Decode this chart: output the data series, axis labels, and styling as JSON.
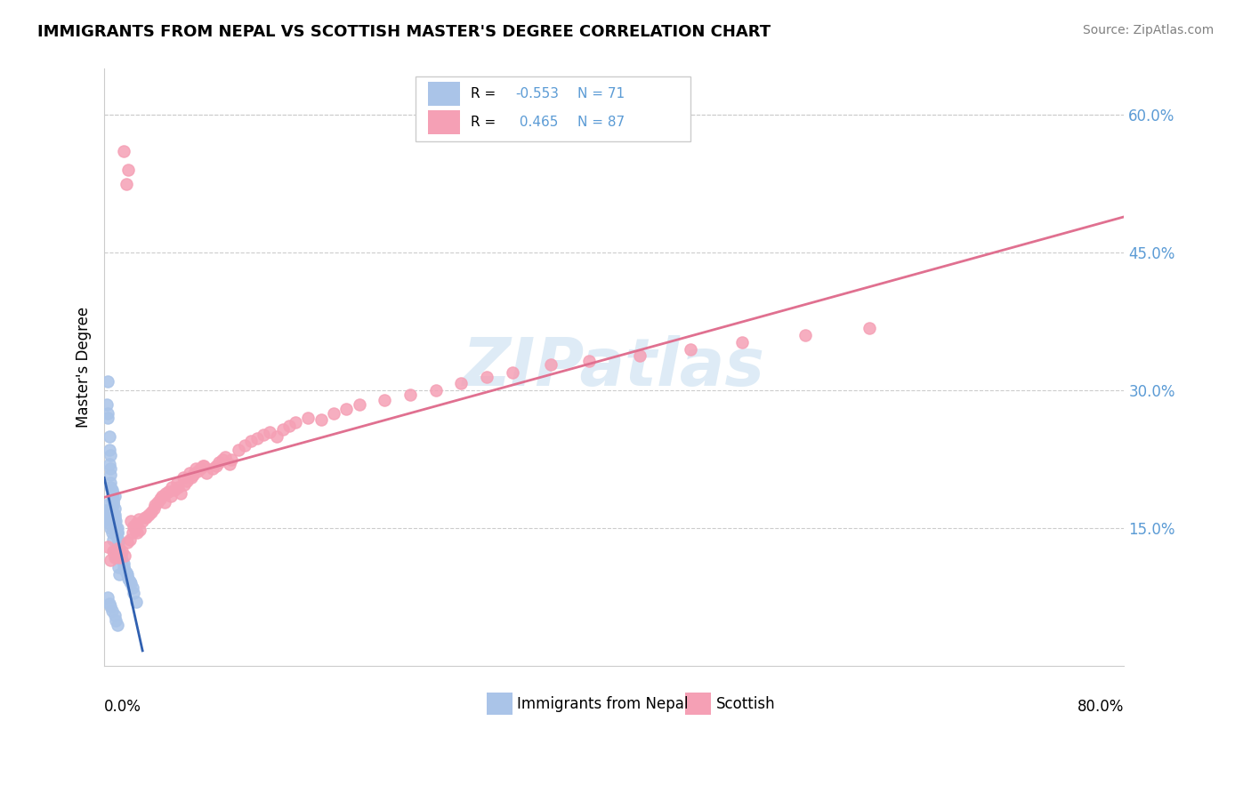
{
  "title": "IMMIGRANTS FROM NEPAL VS SCOTTISH MASTER'S DEGREE CORRELATION CHART",
  "source": "Source: ZipAtlas.com",
  "ylabel": "Master's Degree",
  "right_yticks": [
    "60.0%",
    "45.0%",
    "30.0%",
    "15.0%"
  ],
  "right_ytick_vals": [
    0.6,
    0.45,
    0.3,
    0.15
  ],
  "legend_label1": "Immigrants from Nepal",
  "legend_label2": "Scottish",
  "R1": -0.553,
  "N1": 71,
  "R2": 0.465,
  "N2": 87,
  "color_blue": "#aac4e8",
  "color_pink": "#f5a0b5",
  "color_blue_line": "#3060b0",
  "color_pink_line": "#e07090",
  "watermark": "ZIPatlas",
  "xlim": [
    0.0,
    0.8
  ],
  "ylim": [
    0.0,
    0.65
  ],
  "blue_scatter_x": [
    0.002,
    0.003,
    0.003,
    0.004,
    0.004,
    0.005,
    0.005,
    0.005,
    0.006,
    0.006,
    0.006,
    0.007,
    0.007,
    0.007,
    0.008,
    0.008,
    0.009,
    0.009,
    0.01,
    0.01,
    0.011,
    0.011,
    0.012,
    0.012,
    0.013,
    0.014,
    0.015,
    0.015,
    0.016,
    0.017,
    0.018,
    0.019,
    0.02,
    0.021,
    0.022,
    0.023,
    0.025,
    0.001,
    0.001,
    0.002,
    0.002,
    0.003,
    0.004,
    0.005,
    0.006,
    0.007,
    0.008,
    0.009,
    0.011,
    0.012,
    0.003,
    0.005,
    0.008,
    0.01,
    0.004,
    0.005,
    0.006,
    0.006,
    0.007,
    0.007,
    0.008,
    0.008,
    0.009,
    0.01,
    0.003,
    0.004,
    0.005,
    0.006,
    0.008,
    0.009,
    0.01
  ],
  "blue_scatter_y": [
    0.285,
    0.275,
    0.27,
    0.25,
    0.235,
    0.215,
    0.208,
    0.2,
    0.192,
    0.188,
    0.18,
    0.178,
    0.175,
    0.165,
    0.162,
    0.155,
    0.152,
    0.148,
    0.145,
    0.14,
    0.135,
    0.13,
    0.128,
    0.122,
    0.12,
    0.115,
    0.112,
    0.108,
    0.105,
    0.102,
    0.1,
    0.095,
    0.092,
    0.09,
    0.085,
    0.08,
    0.07,
    0.175,
    0.17,
    0.168,
    0.162,
    0.16,
    0.155,
    0.15,
    0.145,
    0.138,
    0.125,
    0.118,
    0.108,
    0.1,
    0.31,
    0.23,
    0.185,
    0.15,
    0.22,
    0.195,
    0.19,
    0.185,
    0.182,
    0.178,
    0.172,
    0.165,
    0.158,
    0.145,
    0.075,
    0.068,
    0.065,
    0.06,
    0.055,
    0.05,
    0.045
  ],
  "pink_scatter_x": [
    0.003,
    0.005,
    0.007,
    0.008,
    0.01,
    0.012,
    0.014,
    0.016,
    0.018,
    0.02,
    0.022,
    0.024,
    0.026,
    0.028,
    0.03,
    0.033,
    0.035,
    0.037,
    0.04,
    0.042,
    0.045,
    0.047,
    0.05,
    0.052,
    0.055,
    0.058,
    0.06,
    0.063,
    0.065,
    0.068,
    0.07,
    0.073,
    0.075,
    0.078,
    0.08,
    0.085,
    0.088,
    0.09,
    0.093,
    0.095,
    0.098,
    0.1,
    0.105,
    0.11,
    0.115,
    0.12,
    0.125,
    0.13,
    0.135,
    0.14,
    0.145,
    0.15,
    0.16,
    0.17,
    0.18,
    0.19,
    0.2,
    0.22,
    0.24,
    0.26,
    0.28,
    0.3,
    0.32,
    0.35,
    0.38,
    0.42,
    0.46,
    0.5,
    0.55,
    0.6,
    0.015,
    0.017,
    0.019,
    0.021,
    0.023,
    0.025,
    0.027,
    0.032,
    0.039,
    0.044,
    0.048,
    0.053,
    0.057,
    0.062,
    0.067,
    0.072,
    0.077
  ],
  "pink_scatter_y": [
    0.13,
    0.115,
    0.125,
    0.118,
    0.128,
    0.118,
    0.125,
    0.12,
    0.135,
    0.138,
    0.145,
    0.148,
    0.145,
    0.148,
    0.158,
    0.162,
    0.165,
    0.168,
    0.175,
    0.178,
    0.185,
    0.178,
    0.19,
    0.185,
    0.192,
    0.195,
    0.188,
    0.198,
    0.202,
    0.205,
    0.208,
    0.212,
    0.215,
    0.218,
    0.21,
    0.215,
    0.218,
    0.222,
    0.225,
    0.228,
    0.22,
    0.225,
    0.235,
    0.24,
    0.245,
    0.248,
    0.252,
    0.255,
    0.25,
    0.258,
    0.262,
    0.265,
    0.27,
    0.268,
    0.275,
    0.28,
    0.285,
    0.29,
    0.295,
    0.3,
    0.308,
    0.315,
    0.32,
    0.328,
    0.332,
    0.338,
    0.345,
    0.352,
    0.36,
    0.368,
    0.56,
    0.525,
    0.54,
    0.158,
    0.152,
    0.155,
    0.16,
    0.162,
    0.172,
    0.182,
    0.188,
    0.195,
    0.2,
    0.205,
    0.21,
    0.215,
    0.218
  ]
}
